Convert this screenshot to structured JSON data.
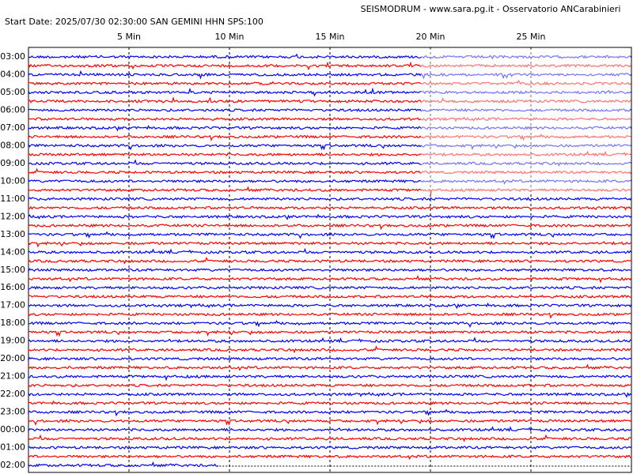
{
  "chart_data": {
    "type": "helicorder",
    "title": "SEISMODRUM - www.sara.pg.it - Osservatorio ANCarabinieri",
    "subtitle": "Start Date: 2025/07/30 02:30:00 SAN GEMINI   HHN  SPS:100",
    "categories": [
      "03:00",
      null,
      "04:00",
      null,
      "05:00",
      null,
      "06:00",
      null,
      "07:00",
      null,
      "08:00",
      null,
      "09:00",
      null,
      "10:00",
      null,
      "11:00",
      null,
      "12:00",
      null,
      "13:00",
      null,
      "14:00",
      null,
      "15:00",
      null,
      "16:00",
      null,
      "17:00",
      null,
      "18:00",
      null,
      "19:00",
      null,
      "20:00",
      null,
      "21:00",
      null,
      "22:00",
      null,
      "23:00",
      null,
      "00:00",
      null,
      "01:00",
      null,
      "02:00"
    ],
    "colors": [
      "#0000ff",
      "#ff0000"
    ],
    "xlim": [
      0,
      30
    ],
    "xticks": [
      {
        "value": 5,
        "label": "5 Min"
      },
      {
        "value": 10,
        "label": "10 Min"
      },
      {
        "value": 15,
        "label": "15 Min"
      },
      {
        "value": 20,
        "label": "20 Min"
      },
      {
        "value": 25,
        "label": "25 Min"
      }
    ],
    "trace_end": 9.5
  }
}
